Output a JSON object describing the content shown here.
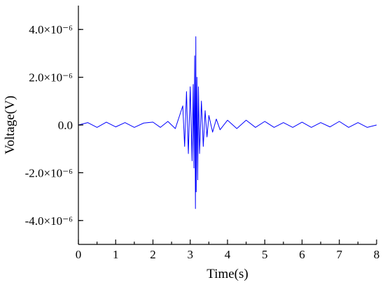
{
  "chart_data": {
    "type": "line",
    "title": "",
    "xlabel": "Time(s)",
    "ylabel": "Voltage(V)",
    "xlim": [
      0,
      8
    ],
    "ylim": [
      -5e-06,
      5e-06
    ],
    "grid": false,
    "legend": "none",
    "x_ticks": [
      {
        "value": 0,
        "label": "0"
      },
      {
        "value": 1,
        "label": "1"
      },
      {
        "value": 2,
        "label": "2"
      },
      {
        "value": 3,
        "label": "3"
      },
      {
        "value": 4,
        "label": "4"
      },
      {
        "value": 5,
        "label": "5"
      },
      {
        "value": 6,
        "label": "6"
      },
      {
        "value": 7,
        "label": "7"
      },
      {
        "value": 8,
        "label": "8"
      }
    ],
    "y_ticks": [
      {
        "value": 4e-06,
        "label": "4.0×10⁻⁶"
      },
      {
        "value": 2e-06,
        "label": "2.0×10⁻⁶"
      },
      {
        "value": 0,
        "label": "0.0"
      },
      {
        "value": -2e-06,
        "label": "-2.0×10⁻⁶"
      },
      {
        "value": -4e-06,
        "label": "-4.0×10⁻⁶"
      }
    ],
    "series": [
      {
        "color": "#0000ff",
        "x": [
          0.0,
          0.25,
          0.5,
          0.75,
          1.0,
          1.25,
          1.5,
          1.75,
          2.0,
          2.2,
          2.4,
          2.6,
          2.8,
          2.85,
          2.9,
          2.95,
          3.0,
          3.05,
          3.08,
          3.1,
          3.12,
          3.14,
          3.15,
          3.16,
          3.18,
          3.2,
          3.22,
          3.25,
          3.3,
          3.35,
          3.4,
          3.45,
          3.5,
          3.6,
          3.7,
          3.8,
          4.0,
          4.25,
          4.5,
          4.75,
          5.0,
          5.25,
          5.5,
          5.75,
          6.0,
          6.25,
          6.5,
          6.75,
          7.0,
          7.25,
          7.5,
          7.75,
          8.0
        ],
        "y": [
          0.0,
          1e-07,
          -1e-07,
          1.2e-07,
          -8e-08,
          1e-07,
          -1e-07,
          8e-08,
          1.2e-07,
          -1e-07,
          1.5e-07,
          -1.5e-07,
          8e-07,
          -9e-07,
          1.4e-06,
          -1.2e-06,
          1.6e-06,
          -1.5e-06,
          1.7e-06,
          -1.8e-06,
          2.9e-06,
          -3.5e-06,
          3.7e-06,
          -2.8e-06,
          2e-06,
          -2.3e-06,
          1.6e-06,
          -1.2e-06,
          1e-06,
          -9e-07,
          6e-07,
          -5e-07,
          4e-07,
          -3e-07,
          2.5e-07,
          -2e-07,
          2e-07,
          -1.5e-07,
          2e-07,
          -1e-07,
          1.5e-07,
          -1e-07,
          1e-07,
          -1e-07,
          1.2e-07,
          -1e-07,
          1e-07,
          -8e-08,
          1.5e-07,
          -1e-07,
          1e-07,
          -1e-07,
          0.0
        ]
      }
    ]
  }
}
